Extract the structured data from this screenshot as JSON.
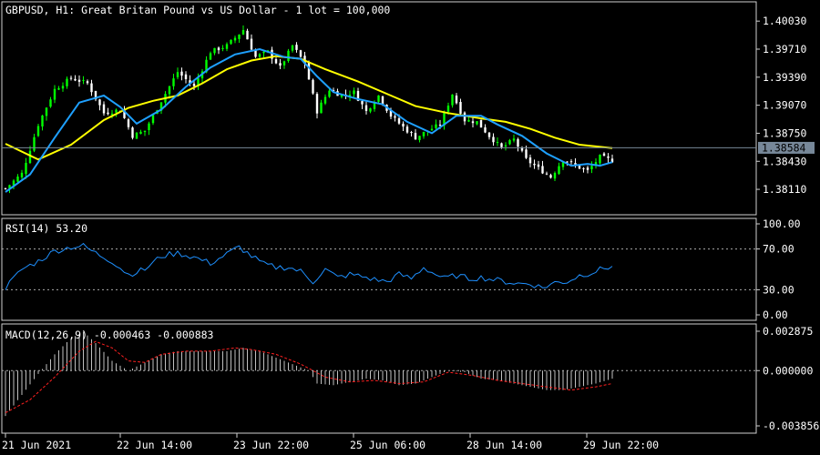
{
  "chart_data": [
    {
      "type": "candlestick",
      "title": "GBPUSD, H1:  Great Britan Pound vs US Dollar - 1 lot = 100,000",
      "y_ticks": [
        "1.40030",
        "1.39710",
        "1.39390",
        "1.39070",
        "1.38750",
        "1.38430",
        "1.38110"
      ],
      "ylim": [
        1.3782,
        1.4025
      ],
      "current_price": 1.38584,
      "current_price_label": "1.38584",
      "x_labels": [
        "21 Jun 2021",
        "22 Jun 14:00",
        "23 Jun 22:00",
        "25 Jun 06:00",
        "28 Jun 14:00",
        "29 Jun 22:00"
      ],
      "colors": {
        "candle_up": "#00ff00",
        "candle_down": "#ffffff",
        "fast_ma": "#1ea0ff",
        "slow_ma": "#ffff00",
        "price_line": "#778899"
      },
      "close_path": [
        [
          0,
          1.3812
        ],
        [
          4,
          1.3829
        ],
        [
          8,
          1.3885
        ],
        [
          12,
          1.3925
        ],
        [
          16,
          1.3938
        ],
        [
          20,
          1.3932
        ],
        [
          24,
          1.3898
        ],
        [
          28,
          1.3902
        ],
        [
          31,
          1.3872
        ],
        [
          34,
          1.3878
        ],
        [
          38,
          1.3912
        ],
        [
          42,
          1.3945
        ],
        [
          46,
          1.3928
        ],
        [
          50,
          1.3968
        ],
        [
          54,
          1.3975
        ],
        [
          58,
          1.3993
        ],
        [
          61,
          1.3962
        ],
        [
          64,
          1.3968
        ],
        [
          67,
          1.395
        ],
        [
          70,
          1.3975
        ],
        [
          73,
          1.3955
        ],
        [
          76,
          1.39
        ],
        [
          79,
          1.3925
        ],
        [
          82,
          1.3918
        ],
        [
          85,
          1.3922
        ],
        [
          88,
          1.39
        ],
        [
          91,
          1.3918
        ],
        [
          94,
          1.3895
        ],
        [
          97,
          1.3882
        ],
        [
          100,
          1.387
        ],
        [
          103,
          1.3878
        ],
        [
          106,
          1.3885
        ],
        [
          109,
          1.392
        ],
        [
          112,
          1.389
        ],
        [
          115,
          1.3888
        ],
        [
          118,
          1.3872
        ],
        [
          121,
          1.3858
        ],
        [
          124,
          1.3868
        ],
        [
          127,
          1.3845
        ],
        [
          130,
          1.3835
        ],
        [
          133,
          1.3825
        ],
        [
          136,
          1.3845
        ],
        [
          139,
          1.3838
        ],
        [
          142,
          1.3832
        ],
        [
          145,
          1.3848
        ],
        [
          148,
          1.3844
        ]
      ],
      "fast_ma_path": [
        [
          0,
          1.3808
        ],
        [
          6,
          1.3828
        ],
        [
          12,
          1.387
        ],
        [
          18,
          1.391
        ],
        [
          24,
          1.3918
        ],
        [
          28,
          1.3905
        ],
        [
          32,
          1.3886
        ],
        [
          38,
          1.3902
        ],
        [
          44,
          1.3928
        ],
        [
          50,
          1.395
        ],
        [
          56,
          1.3965
        ],
        [
          62,
          1.3971
        ],
        [
          68,
          1.3962
        ],
        [
          72,
          1.396
        ],
        [
          76,
          1.394
        ],
        [
          80,
          1.3922
        ],
        [
          86,
          1.3914
        ],
        [
          92,
          1.3908
        ],
        [
          98,
          1.3888
        ],
        [
          104,
          1.3875
        ],
        [
          110,
          1.3895
        ],
        [
          116,
          1.3895
        ],
        [
          120,
          1.3885
        ],
        [
          126,
          1.3872
        ],
        [
          132,
          1.3852
        ],
        [
          138,
          1.3838
        ],
        [
          142,
          1.384
        ],
        [
          145,
          1.3838
        ],
        [
          148,
          1.3842
        ]
      ],
      "slow_ma_path": [
        [
          0,
          1.3863
        ],
        [
          8,
          1.3845
        ],
        [
          16,
          1.3862
        ],
        [
          24,
          1.389
        ],
        [
          30,
          1.3904
        ],
        [
          36,
          1.3912
        ],
        [
          42,
          1.3918
        ],
        [
          48,
          1.3932
        ],
        [
          54,
          1.3948
        ],
        [
          60,
          1.3958
        ],
        [
          66,
          1.3963
        ],
        [
          72,
          1.396
        ],
        [
          78,
          1.3948
        ],
        [
          86,
          1.3934
        ],
        [
          94,
          1.3918
        ],
        [
          100,
          1.3906
        ],
        [
          108,
          1.3898
        ],
        [
          116,
          1.3892
        ],
        [
          122,
          1.3888
        ],
        [
          128,
          1.388
        ],
        [
          134,
          1.387
        ],
        [
          140,
          1.3862
        ],
        [
          148,
          1.3858
        ]
      ]
    },
    {
      "type": "line",
      "title": "RSI(14) 53.20",
      "y_ticks": [
        "100.00",
        "70.00",
        "30.00",
        "0.00"
      ],
      "ylim": [
        0,
        100
      ],
      "levels": [
        70,
        30
      ],
      "colors": {
        "line": "#1e90ff",
        "level": "#aaaaaa"
      },
      "series": [
        {
          "values": [
            [
              0,
              32
            ],
            [
              4,
              50
            ],
            [
              8,
              58
            ],
            [
              12,
              68
            ],
            [
              16,
              72
            ],
            [
              19,
              73
            ],
            [
              22,
              66
            ],
            [
              26,
              58
            ],
            [
              30,
              45
            ],
            [
              34,
              50
            ],
            [
              38,
              63
            ],
            [
              42,
              66
            ],
            [
              46,
              62
            ],
            [
              50,
              56
            ],
            [
              54,
              65
            ],
            [
              57,
              72
            ],
            [
              60,
              63
            ],
            [
              63,
              55
            ],
            [
              66,
              52
            ],
            [
              69,
              52
            ],
            [
              72,
              48
            ],
            [
              75,
              38
            ],
            [
              78,
              50
            ],
            [
              81,
              42
            ],
            [
              84,
              45
            ],
            [
              87,
              43
            ],
            [
              90,
              40
            ],
            [
              93,
              38
            ],
            [
              96,
              45
            ],
            [
              99,
              41
            ],
            [
              102,
              52
            ],
            [
              104,
              47
            ],
            [
              107,
              41
            ],
            [
              110,
              44
            ],
            [
              113,
              41
            ],
            [
              116,
              42
            ],
            [
              119,
              40
            ],
            [
              122,
              38
            ],
            [
              125,
              36
            ],
            [
              128,
              36
            ],
            [
              131,
              32
            ],
            [
              134,
              37
            ],
            [
              137,
              38
            ],
            [
              140,
              44
            ],
            [
              143,
              47
            ],
            [
              146,
              51
            ],
            [
              148,
              53.2
            ]
          ]
        }
      ]
    },
    {
      "type": "bar",
      "title": "MACD(12,26,9) -0.000463 -0.000883",
      "y_ticks": [
        "0.002875",
        "0.000000",
        "-0.003856"
      ],
      "ylim": [
        -0.003856,
        0.002875
      ],
      "colors": {
        "histogram": "#c0c0c0",
        "signal": "#ff2020"
      },
      "histogram_path": [
        [
          0,
          -0.0028
        ],
        [
          4,
          -0.0015
        ],
        [
          8,
          -0.0002
        ],
        [
          12,
          0.001
        ],
        [
          16,
          0.002
        ],
        [
          19,
          0.0024
        ],
        [
          22,
          0.0017
        ],
        [
          26,
          0.0006
        ],
        [
          30,
          0.0
        ],
        [
          34,
          0.0005
        ],
        [
          38,
          0.001
        ],
        [
          42,
          0.0012
        ],
        [
          46,
          0.0012
        ],
        [
          50,
          0.0012
        ],
        [
          54,
          0.0012
        ],
        [
          58,
          0.0014
        ],
        [
          62,
          0.0012
        ],
        [
          66,
          0.0008
        ],
        [
          70,
          0.0004
        ],
        [
          74,
          0.0
        ],
        [
          76,
          -0.0008
        ],
        [
          80,
          -0.0009
        ],
        [
          84,
          -0.0007
        ],
        [
          88,
          -0.0005
        ],
        [
          92,
          -0.0006
        ],
        [
          96,
          -0.0009
        ],
        [
          100,
          -0.0008
        ],
        [
          104,
          -0.0004
        ],
        [
          108,
          0.0
        ],
        [
          112,
          -0.0001
        ],
        [
          116,
          -0.0005
        ],
        [
          120,
          -0.0006
        ],
        [
          124,
          -0.0008
        ],
        [
          128,
          -0.001
        ],
        [
          132,
          -0.0012
        ],
        [
          136,
          -0.0012
        ],
        [
          140,
          -0.001
        ],
        [
          144,
          -0.0008
        ],
        [
          148,
          -0.0005
        ]
      ],
      "signal_path": [
        [
          0,
          -0.0026
        ],
        [
          6,
          -0.0018
        ],
        [
          12,
          -0.0004
        ],
        [
          18,
          0.0012
        ],
        [
          22,
          0.0018
        ],
        [
          26,
          0.0014
        ],
        [
          30,
          0.0006
        ],
        [
          34,
          0.0005
        ],
        [
          38,
          0.001
        ],
        [
          44,
          0.0012
        ],
        [
          50,
          0.0012
        ],
        [
          56,
          0.0014
        ],
        [
          60,
          0.0013
        ],
        [
          66,
          0.001
        ],
        [
          72,
          0.0004
        ],
        [
          78,
          -0.0004
        ],
        [
          84,
          -0.0007
        ],
        [
          90,
          -0.0006
        ],
        [
          96,
          -0.0008
        ],
        [
          102,
          -0.0007
        ],
        [
          108,
          -0.0001
        ],
        [
          114,
          -0.0003
        ],
        [
          120,
          -0.0006
        ],
        [
          126,
          -0.0008
        ],
        [
          132,
          -0.001
        ],
        [
          138,
          -0.0012
        ],
        [
          144,
          -0.001
        ],
        [
          148,
          -0.0008
        ]
      ]
    }
  ]
}
